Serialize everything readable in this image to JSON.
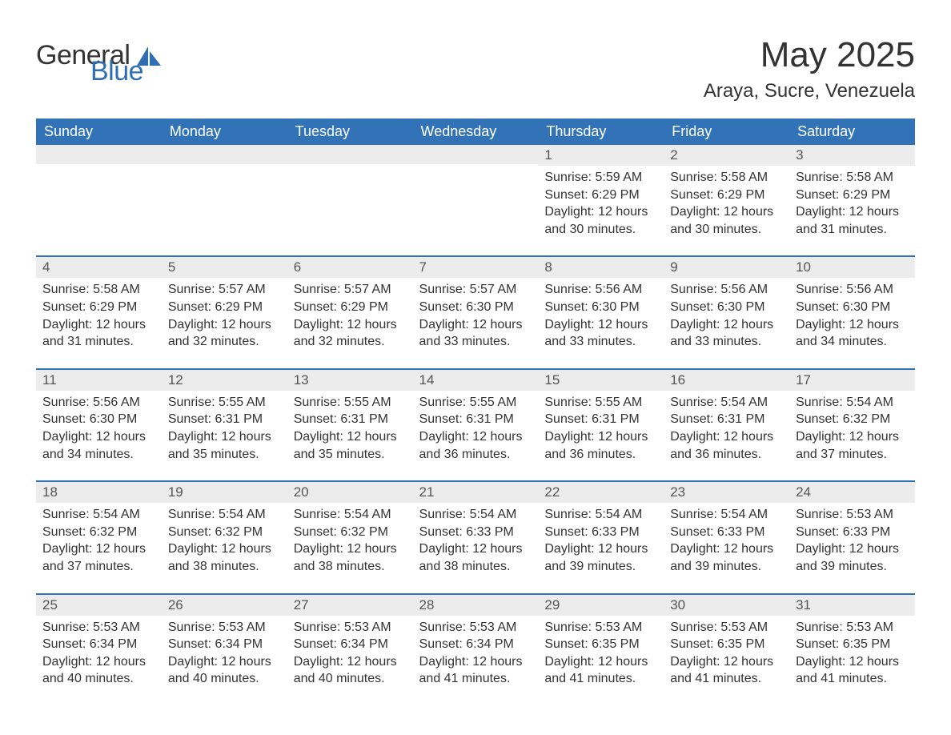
{
  "logo": {
    "word1": "General",
    "word2": "Blue"
  },
  "title": "May 2025",
  "location": "Araya, Sucre, Venezuela",
  "colors": {
    "header_bg": "#3273b8",
    "header_text": "#ffffff",
    "row_divider": "#3273b8",
    "daynum_bg": "#ececec",
    "daynum_text": "#555555",
    "body_text": "#333333",
    "logo_accent": "#2f6eb5",
    "page_bg": "#ffffff"
  },
  "day_headers": [
    "Sunday",
    "Monday",
    "Tuesday",
    "Wednesday",
    "Thursday",
    "Friday",
    "Saturday"
  ],
  "weeks": [
    [
      {
        "n": "",
        "sunrise": "",
        "sunset": "",
        "daylight": ""
      },
      {
        "n": "",
        "sunrise": "",
        "sunset": "",
        "daylight": ""
      },
      {
        "n": "",
        "sunrise": "",
        "sunset": "",
        "daylight": ""
      },
      {
        "n": "",
        "sunrise": "",
        "sunset": "",
        "daylight": ""
      },
      {
        "n": "1",
        "sunrise": "Sunrise: 5:59 AM",
        "sunset": "Sunset: 6:29 PM",
        "daylight": "Daylight: 12 hours and 30 minutes."
      },
      {
        "n": "2",
        "sunrise": "Sunrise: 5:58 AM",
        "sunset": "Sunset: 6:29 PM",
        "daylight": "Daylight: 12 hours and 30 minutes."
      },
      {
        "n": "3",
        "sunrise": "Sunrise: 5:58 AM",
        "sunset": "Sunset: 6:29 PM",
        "daylight": "Daylight: 12 hours and 31 minutes."
      }
    ],
    [
      {
        "n": "4",
        "sunrise": "Sunrise: 5:58 AM",
        "sunset": "Sunset: 6:29 PM",
        "daylight": "Daylight: 12 hours and 31 minutes."
      },
      {
        "n": "5",
        "sunrise": "Sunrise: 5:57 AM",
        "sunset": "Sunset: 6:29 PM",
        "daylight": "Daylight: 12 hours and 32 minutes."
      },
      {
        "n": "6",
        "sunrise": "Sunrise: 5:57 AM",
        "sunset": "Sunset: 6:29 PM",
        "daylight": "Daylight: 12 hours and 32 minutes."
      },
      {
        "n": "7",
        "sunrise": "Sunrise: 5:57 AM",
        "sunset": "Sunset: 6:30 PM",
        "daylight": "Daylight: 12 hours and 33 minutes."
      },
      {
        "n": "8",
        "sunrise": "Sunrise: 5:56 AM",
        "sunset": "Sunset: 6:30 PM",
        "daylight": "Daylight: 12 hours and 33 minutes."
      },
      {
        "n": "9",
        "sunrise": "Sunrise: 5:56 AM",
        "sunset": "Sunset: 6:30 PM",
        "daylight": "Daylight: 12 hours and 33 minutes."
      },
      {
        "n": "10",
        "sunrise": "Sunrise: 5:56 AM",
        "sunset": "Sunset: 6:30 PM",
        "daylight": "Daylight: 12 hours and 34 minutes."
      }
    ],
    [
      {
        "n": "11",
        "sunrise": "Sunrise: 5:56 AM",
        "sunset": "Sunset: 6:30 PM",
        "daylight": "Daylight: 12 hours and 34 minutes."
      },
      {
        "n": "12",
        "sunrise": "Sunrise: 5:55 AM",
        "sunset": "Sunset: 6:31 PM",
        "daylight": "Daylight: 12 hours and 35 minutes."
      },
      {
        "n": "13",
        "sunrise": "Sunrise: 5:55 AM",
        "sunset": "Sunset: 6:31 PM",
        "daylight": "Daylight: 12 hours and 35 minutes."
      },
      {
        "n": "14",
        "sunrise": "Sunrise: 5:55 AM",
        "sunset": "Sunset: 6:31 PM",
        "daylight": "Daylight: 12 hours and 36 minutes."
      },
      {
        "n": "15",
        "sunrise": "Sunrise: 5:55 AM",
        "sunset": "Sunset: 6:31 PM",
        "daylight": "Daylight: 12 hours and 36 minutes."
      },
      {
        "n": "16",
        "sunrise": "Sunrise: 5:54 AM",
        "sunset": "Sunset: 6:31 PM",
        "daylight": "Daylight: 12 hours and 36 minutes."
      },
      {
        "n": "17",
        "sunrise": "Sunrise: 5:54 AM",
        "sunset": "Sunset: 6:32 PM",
        "daylight": "Daylight: 12 hours and 37 minutes."
      }
    ],
    [
      {
        "n": "18",
        "sunrise": "Sunrise: 5:54 AM",
        "sunset": "Sunset: 6:32 PM",
        "daylight": "Daylight: 12 hours and 37 minutes."
      },
      {
        "n": "19",
        "sunrise": "Sunrise: 5:54 AM",
        "sunset": "Sunset: 6:32 PM",
        "daylight": "Daylight: 12 hours and 38 minutes."
      },
      {
        "n": "20",
        "sunrise": "Sunrise: 5:54 AM",
        "sunset": "Sunset: 6:32 PM",
        "daylight": "Daylight: 12 hours and 38 minutes."
      },
      {
        "n": "21",
        "sunrise": "Sunrise: 5:54 AM",
        "sunset": "Sunset: 6:33 PM",
        "daylight": "Daylight: 12 hours and 38 minutes."
      },
      {
        "n": "22",
        "sunrise": "Sunrise: 5:54 AM",
        "sunset": "Sunset: 6:33 PM",
        "daylight": "Daylight: 12 hours and 39 minutes."
      },
      {
        "n": "23",
        "sunrise": "Sunrise: 5:54 AM",
        "sunset": "Sunset: 6:33 PM",
        "daylight": "Daylight: 12 hours and 39 minutes."
      },
      {
        "n": "24",
        "sunrise": "Sunrise: 5:53 AM",
        "sunset": "Sunset: 6:33 PM",
        "daylight": "Daylight: 12 hours and 39 minutes."
      }
    ],
    [
      {
        "n": "25",
        "sunrise": "Sunrise: 5:53 AM",
        "sunset": "Sunset: 6:34 PM",
        "daylight": "Daylight: 12 hours and 40 minutes."
      },
      {
        "n": "26",
        "sunrise": "Sunrise: 5:53 AM",
        "sunset": "Sunset: 6:34 PM",
        "daylight": "Daylight: 12 hours and 40 minutes."
      },
      {
        "n": "27",
        "sunrise": "Sunrise: 5:53 AM",
        "sunset": "Sunset: 6:34 PM",
        "daylight": "Daylight: 12 hours and 40 minutes."
      },
      {
        "n": "28",
        "sunrise": "Sunrise: 5:53 AM",
        "sunset": "Sunset: 6:34 PM",
        "daylight": "Daylight: 12 hours and 41 minutes."
      },
      {
        "n": "29",
        "sunrise": "Sunrise: 5:53 AM",
        "sunset": "Sunset: 6:35 PM",
        "daylight": "Daylight: 12 hours and 41 minutes."
      },
      {
        "n": "30",
        "sunrise": "Sunrise: 5:53 AM",
        "sunset": "Sunset: 6:35 PM",
        "daylight": "Daylight: 12 hours and 41 minutes."
      },
      {
        "n": "31",
        "sunrise": "Sunrise: 5:53 AM",
        "sunset": "Sunset: 6:35 PM",
        "daylight": "Daylight: 12 hours and 41 minutes."
      }
    ]
  ]
}
